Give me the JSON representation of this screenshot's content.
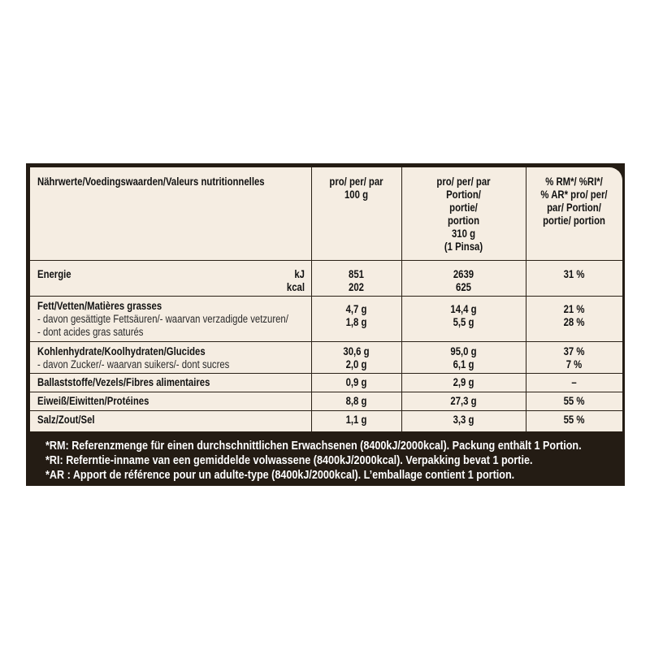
{
  "header": {
    "name_col": "Nährwerte/Voedingswaarden/Valeurs nutritionnelles",
    "per100": [
      "pro/ per/ par",
      "100 g"
    ],
    "perPortion": [
      "pro/ per/ par",
      "Portion/",
      "portie/",
      "portion",
      "310 g",
      "(1 Pinsa)"
    ],
    "percent": [
      "% RM*/ %RI*/",
      "% AR* pro/ per/",
      "par/ Portion/",
      "portie/ portion"
    ]
  },
  "rows": {
    "energie": {
      "label": "Energie",
      "unit1": "kJ",
      "unit2": "kcal",
      "v100_1": "851",
      "v100_2": "202",
      "vp_1": "2639",
      "vp_2": "625",
      "pct": "31 %"
    },
    "fett": {
      "label": "Fett/Vetten/Matières grasses",
      "sub1": "- davon gesättigte Fettsäuren/- waarvan verzadigde vetzuren/",
      "sub2": "- dont acides gras saturés",
      "v100_1": "4,7 g",
      "v100_2": "1,8 g",
      "vp_1": "14,4 g",
      "vp_2": "5,5 g",
      "pct_1": "21 %",
      "pct_2": "28 %"
    },
    "kohlen": {
      "label": "Kohlenhydrate/Koolhydraten/Glucides",
      "sub1": "- davon Zucker/- waarvan suikers/- dont sucres",
      "v100_1": "30,6 g",
      "v100_2": "2,0 g",
      "vp_1": "95,0 g",
      "vp_2": "6,1 g",
      "pct_1": "37 %",
      "pct_2": "7 %"
    },
    "ballast": {
      "label": "Ballaststoffe/Vezels/Fibres alimentaires",
      "v100": "0,9 g",
      "vp": "2,9 g",
      "pct": "–"
    },
    "eiweiss": {
      "label": "Eiweiß/Eiwitten/Protéines",
      "v100": "8,8 g",
      "vp": "27,3 g",
      "pct": "55 %"
    },
    "salz": {
      "label": "Salz/Zout/Sel",
      "v100": "1,1 g",
      "vp": "3,3 g",
      "pct": "55 %"
    }
  },
  "footnotes": [
    "*RM: Referenzmenge für einen durchschnittlichen Erwachsenen (8400kJ/2000kcal). Packung enthält 1 Portion.",
    "*RI: Referntie-inname van een gemiddelde volwassene (8400kJ/2000kcal). Verpakking bevat 1 portie.",
    "*AR : Apport de référence pour un adulte-type (8400kJ/2000kcal). L’emballage contient 1 portion."
  ],
  "colors": {
    "frame": "#241c14",
    "table_bg": "#f5ede2",
    "text": "#111111",
    "footer_text": "#ffffff"
  }
}
